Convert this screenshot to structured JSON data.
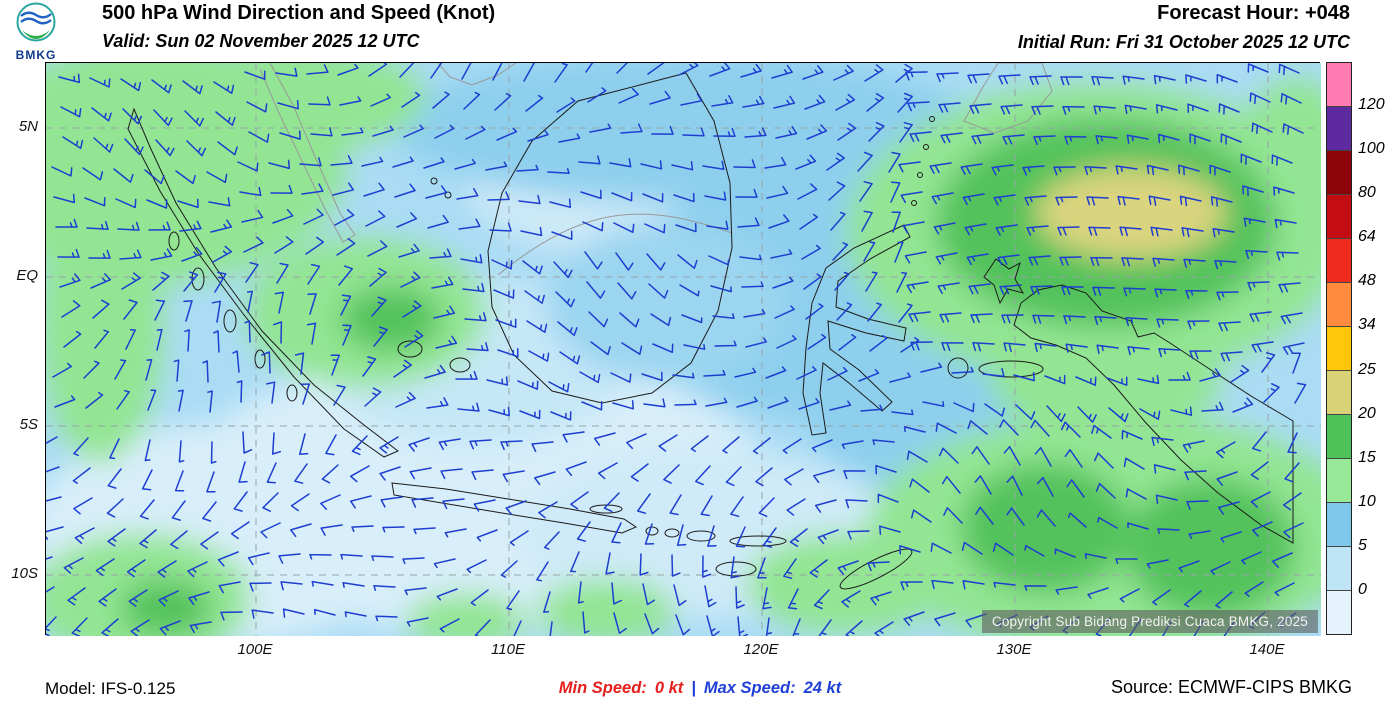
{
  "header": {
    "logo": "BMKG",
    "title": "500 hPa Wind Direction and Speed (Knot)",
    "valid_line": "Valid: Sun 02 November 2025 12 UTC",
    "forecast_hour": "Forecast Hour: +048",
    "initial_run": "Initial Run: Fri 31 October 2025 12 UTC"
  },
  "map": {
    "y_ticks": [
      "5N",
      "EQ",
      "5S",
      "10S"
    ],
    "x_ticks": [
      "100E",
      "110E",
      "120E",
      "130E",
      "140E"
    ],
    "copyright": "Copyright Sub Bidang Prediksi Cuaca BMKG, 2025",
    "barb_color": "#1d3ed0"
  },
  "legend": {
    "values": [
      "120",
      "100",
      "80",
      "64",
      "48",
      "34",
      "25",
      "20",
      "15",
      "10",
      "5",
      "0"
    ],
    "colors_top_to_bottom": [
      "#ff7bb2",
      "#5e2aa0",
      "#8c0309",
      "#c40d12",
      "#ee2b1d",
      "#ff8b3e",
      "#ffc60a",
      "#d9d277",
      "#4fc35a",
      "#97e897",
      "#7ec8ec",
      "#bfe4f6",
      "#e4f3fc"
    ]
  },
  "footer": {
    "model": "Model: IFS-0.125",
    "min_speed_label": "Min Speed:",
    "min_speed_value": "0 kt",
    "separator": "|",
    "max_speed_label": "Max Speed:",
    "max_speed_value": "24 kt",
    "source": "Source: ECMWF-CIPS BMKG"
  },
  "chart_data": {
    "type": "map",
    "subtype": "wind-barb-field",
    "title": "500 hPa Wind Direction and Speed (Knot)",
    "region": "Indonesia",
    "valid": "Sun 02 November 2025 12 UTC",
    "initial_run": "Fri 31 October 2025 12 UTC",
    "forecast_hour": "+048",
    "units": "knot",
    "legend_scale_kt": [
      0,
      5,
      10,
      15,
      20,
      25,
      34,
      48,
      64,
      80,
      100,
      120
    ],
    "legend_colors_low_to_high": [
      "#e4f3fc",
      "#bfe4f6",
      "#7ec8ec",
      "#97e897",
      "#4fc35a",
      "#d9d277",
      "#ffc60a",
      "#ff8b3e",
      "#ee2b1d",
      "#c40d12",
      "#8c0309",
      "#5e2aa0",
      "#ff7bb2"
    ],
    "lat_ticks": [
      "5N",
      "EQ",
      "5S",
      "10S"
    ],
    "lon_ticks": [
      "100E",
      "110E",
      "120E",
      "130E",
      "140E"
    ],
    "min_speed_kt": 0,
    "max_speed_kt": 24,
    "model": "IFS-0.125",
    "source": "ECMWF-CIPS BMKG",
    "notes": "Observed shaded speeds on map range 0-25 kt: light blues over most seas, greens (10-20 kt) over NW Sumatra, NE quadrant (Philippine Sea) and SE quadrant (Arafura region), yellow-khaki core (20-25 kt) NE of Sulawesi"
  }
}
